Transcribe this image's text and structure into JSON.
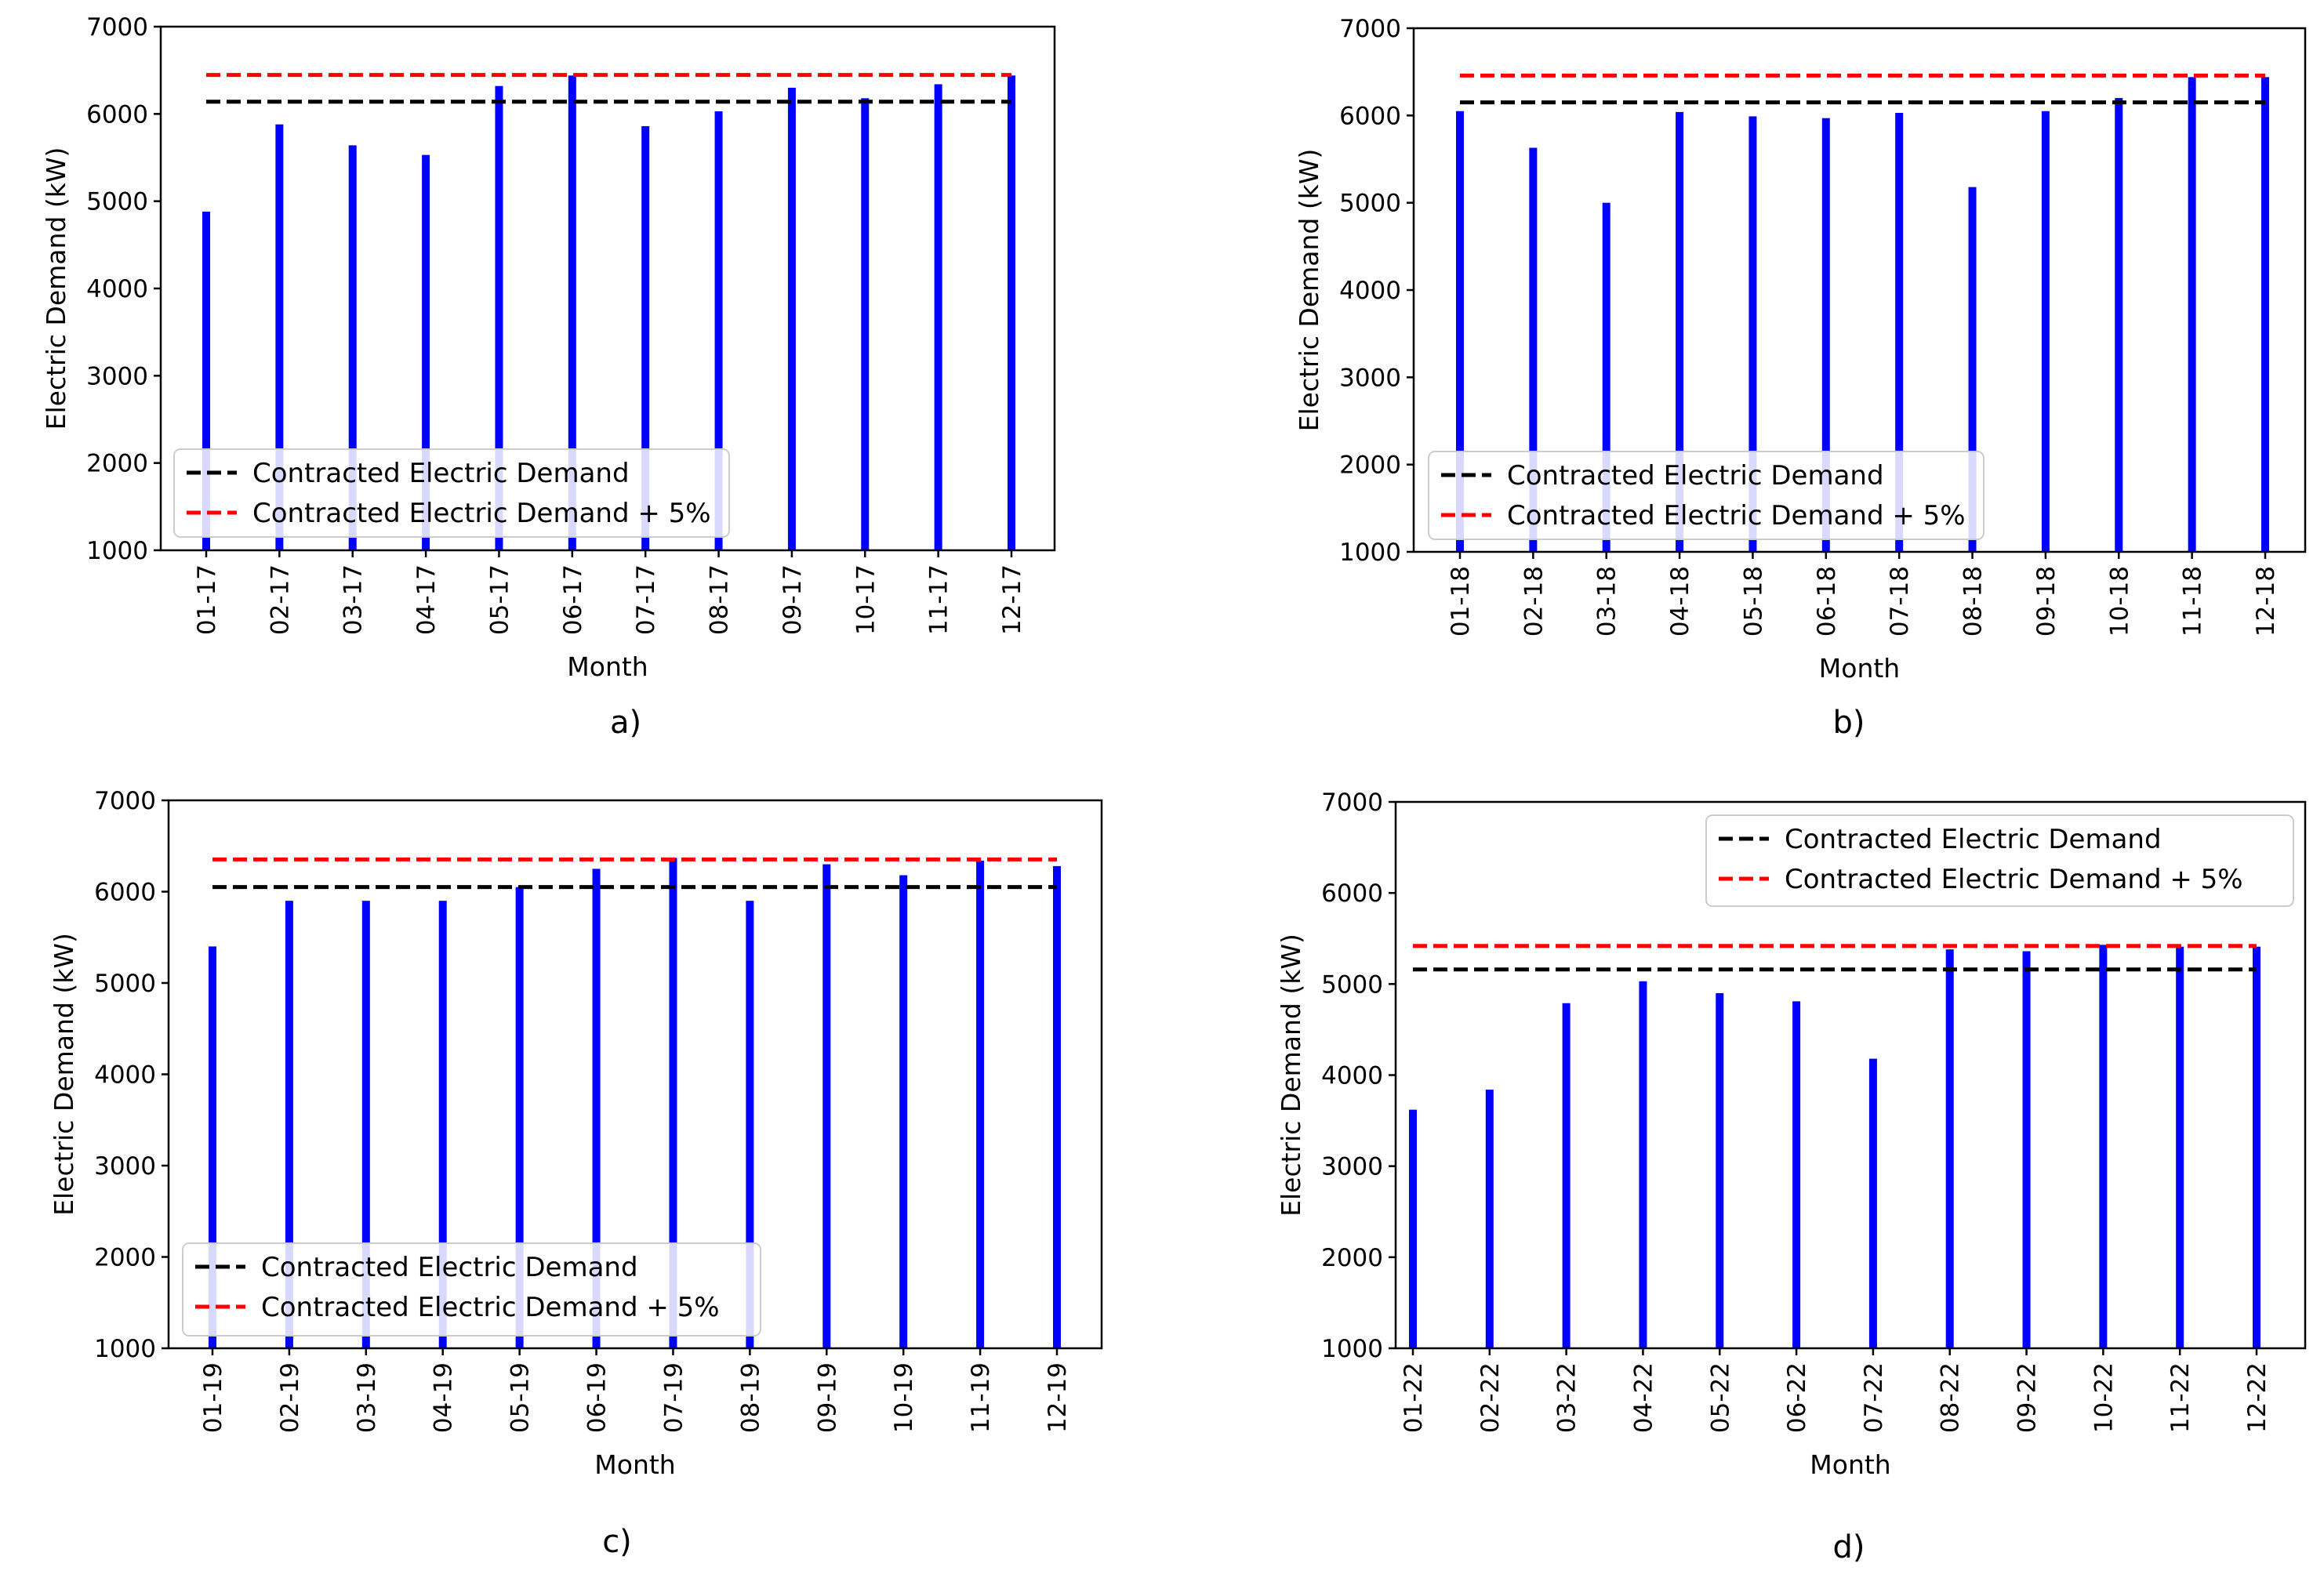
{
  "chart_data": [
    {
      "type": "bar",
      "panel_label": "a)",
      "categories": [
        "01-17",
        "02-17",
        "03-17",
        "04-17",
        "05-17",
        "06-17",
        "07-17",
        "08-17",
        "09-17",
        "10-17",
        "11-17",
        "12-17"
      ],
      "values": [
        4880,
        5880,
        5640,
        5530,
        6320,
        6440,
        5860,
        6030,
        6300,
        6180,
        6340,
        6440
      ],
      "xlabel": "Month",
      "ylabel": "Electric Demand (kW)",
      "ylim": [
        1000,
        7000
      ],
      "yticks": [
        "1000",
        "2000",
        "3000",
        "4000",
        "5000",
        "6000",
        "7000"
      ],
      "lines": [
        {
          "label": "Contracted Electric Demand",
          "value": 6140,
          "color": "#000000"
        },
        {
          "label": "Contracted Electric Demand + 5%",
          "value": 6447,
          "color": "#ff0000"
        }
      ],
      "bar_color": "#0000ff",
      "legend_position": "lower-left"
    },
    {
      "type": "bar",
      "panel_label": "b)",
      "categories": [
        "01-18",
        "02-18",
        "03-18",
        "04-18",
        "05-18",
        "06-18",
        "07-18",
        "08-18",
        "09-18",
        "10-18",
        "11-18",
        "12-18"
      ],
      "values": [
        6050,
        5630,
        5000,
        6040,
        5990,
        5970,
        6030,
        5180,
        6050,
        6200,
        6440,
        6440
      ],
      "xlabel": "Month",
      "ylabel": "Electric Demand (kW)",
      "ylim": [
        1000,
        7000
      ],
      "yticks": [
        "1000",
        "2000",
        "3000",
        "4000",
        "5000",
        "6000",
        "7000"
      ],
      "lines": [
        {
          "label": "Contracted Electric Demand",
          "value": 6150,
          "color": "#000000"
        },
        {
          "label": "Contracted Electric Demand + 5%",
          "value": 6458,
          "color": "#ff0000"
        }
      ],
      "bar_color": "#0000ff",
      "legend_position": "lower-left"
    },
    {
      "type": "bar",
      "panel_label": "c)",
      "categories": [
        "01-19",
        "02-19",
        "03-19",
        "04-19",
        "05-19",
        "06-19",
        "07-19",
        "08-19",
        "09-19",
        "10-19",
        "11-19",
        "12-19"
      ],
      "values": [
        5400,
        5900,
        5900,
        5900,
        6050,
        6250,
        6370,
        5900,
        6300,
        6180,
        6340,
        6280
      ],
      "xlabel": "Month",
      "ylabel": "Electric Demand (kW)",
      "ylim": [
        1000,
        7000
      ],
      "yticks": [
        "1000",
        "2000",
        "3000",
        "4000",
        "5000",
        "6000",
        "7000"
      ],
      "lines": [
        {
          "label": "Contracted Electric Demand",
          "value": 6050,
          "color": "#000000"
        },
        {
          "label": "Contracted Electric Demand + 5%",
          "value": 6353,
          "color": "#ff0000"
        }
      ],
      "bar_color": "#0000ff",
      "legend_position": "lower-left"
    },
    {
      "type": "bar",
      "panel_label": "d)",
      "categories": [
        "01-22",
        "02-22",
        "03-22",
        "04-22",
        "05-22",
        "06-22",
        "07-22",
        "08-22",
        "09-22",
        "10-22",
        "11-22",
        "12-22"
      ],
      "values": [
        3620,
        3840,
        4790,
        5030,
        4900,
        4810,
        4180,
        5380,
        5360,
        5430,
        5410,
        5410
      ],
      "xlabel": "Month",
      "ylabel": "Electric Demand (kW)",
      "ylim": [
        1000,
        7000
      ],
      "yticks": [
        "1000",
        "2000",
        "3000",
        "4000",
        "5000",
        "6000",
        "7000"
      ],
      "lines": [
        {
          "label": "Contracted Electric Demand",
          "value": 5160,
          "color": "#000000"
        },
        {
          "label": "Contracted Electric Demand + 5%",
          "value": 5418,
          "color": "#ff0000"
        }
      ],
      "bar_color": "#0000ff",
      "legend_position": "upper-right"
    }
  ]
}
